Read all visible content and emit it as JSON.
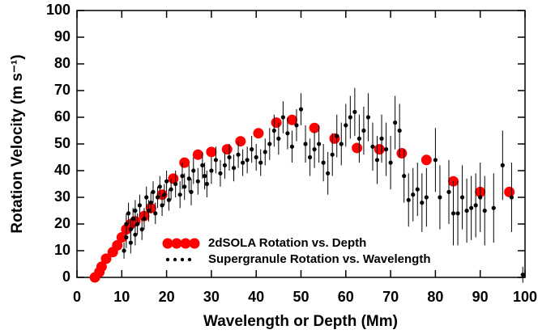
{
  "chart_data": {
    "type": "scatter",
    "xlabel": "Wavelength or Depth (Mm)",
    "ylabel": "Rotation Velocity (m s⁻¹)",
    "xlim": [
      0,
      100
    ],
    "ylim": [
      0,
      100
    ],
    "xticks": [
      0,
      10,
      20,
      30,
      40,
      50,
      60,
      70,
      80,
      90,
      100
    ],
    "yticks": [
      0,
      10,
      20,
      30,
      40,
      50,
      60,
      70,
      80,
      90,
      100
    ],
    "legend": "lower center",
    "series": [
      {
        "name": "2dSOLA Rotation vs. Depth",
        "color": "#ff0000",
        "x": [
          4,
          5,
          5.5,
          6.5,
          8,
          9,
          10,
          11,
          12,
          13,
          15,
          16.5,
          19,
          21.5,
          24,
          27,
          30,
          33.5,
          36.5,
          40.5,
          44.5,
          48,
          53,
          57.5,
          62.5,
          67.5,
          72.5,
          78,
          84,
          90,
          96.5
        ],
        "values": [
          0,
          2,
          4,
          7,
          9.5,
          12,
          15,
          18,
          20,
          21,
          23,
          26,
          31,
          37,
          43,
          46,
          47,
          48,
          51,
          54,
          58,
          59,
          56,
          52,
          48.5,
          48,
          46.5,
          44,
          36,
          32,
          32
        ]
      },
      {
        "name": "Supergranule Rotation vs. Wavelength",
        "color": "#000000",
        "x": [
          10.5,
          11,
          11,
          11.5,
          12,
          12,
          12.5,
          13,
          13,
          13.5,
          14,
          14.5,
          15,
          15.5,
          16,
          16.5,
          17,
          17.5,
          18,
          18.5,
          19,
          19.5,
          20,
          20.5,
          21,
          22,
          23,
          23.5,
          24,
          25,
          25.5,
          26,
          27,
          28,
          28.5,
          29,
          30,
          31,
          32,
          33,
          34,
          35,
          36,
          37,
          38,
          39,
          40,
          41,
          42,
          43,
          44,
          45,
          46,
          47,
          48,
          49,
          50,
          51,
          52,
          53,
          54,
          55,
          56,
          57,
          58,
          59,
          60,
          61,
          62,
          63,
          64,
          65,
          66,
          67,
          68,
          69,
          70,
          71,
          72,
          73,
          74,
          75,
          76,
          77,
          78,
          80,
          81,
          83,
          84,
          85,
          86,
          87,
          88,
          89,
          90,
          91,
          93,
          95,
          97,
          99.5
        ],
        "values": [
          10,
          15,
          20,
          24,
          13,
          18,
          22,
          16,
          25,
          20,
          27,
          18,
          22,
          30,
          25,
          28,
          32,
          24,
          30,
          34,
          27,
          31,
          36,
          29,
          33,
          35,
          31,
          38,
          34,
          37,
          32,
          40,
          36,
          42,
          38,
          35,
          40,
          44,
          39,
          42,
          45,
          41,
          46,
          43,
          44,
          48,
          45,
          43,
          47,
          50,
          55,
          52,
          60,
          54,
          49,
          57,
          63,
          50,
          45,
          48,
          50,
          43,
          39,
          46,
          53,
          50,
          57,
          60,
          62,
          52,
          55,
          60,
          49,
          44,
          52,
          48,
          43,
          58,
          55,
          38,
          29,
          31,
          33,
          28,
          30,
          44,
          30,
          32,
          24,
          24,
          30,
          25,
          26,
          27,
          30,
          25,
          26,
          42,
          30,
          1
        ],
        "errors": [
          3,
          4,
          4,
          4,
          4,
          4,
          4,
          4,
          4,
          4,
          4,
          4,
          4,
          4,
          4,
          4,
          4,
          4,
          4,
          4,
          4,
          4,
          4,
          4,
          4,
          5,
          5,
          5,
          5,
          5,
          5,
          5,
          5,
          5,
          5,
          5,
          5,
          5,
          5,
          5,
          5,
          5,
          5,
          5,
          5,
          5,
          5,
          5,
          5,
          6,
          6,
          6,
          6,
          6,
          6,
          6,
          6,
          7,
          7,
          7,
          7,
          7,
          8,
          8,
          8,
          8,
          8,
          8,
          9,
          9,
          9,
          9,
          9,
          9,
          9,
          10,
          10,
          10,
          10,
          10,
          10,
          10,
          10,
          11,
          11,
          12,
          12,
          12,
          12,
          12,
          12,
          12,
          12,
          12,
          13,
          13,
          13,
          13,
          13,
          3
        ]
      }
    ]
  }
}
